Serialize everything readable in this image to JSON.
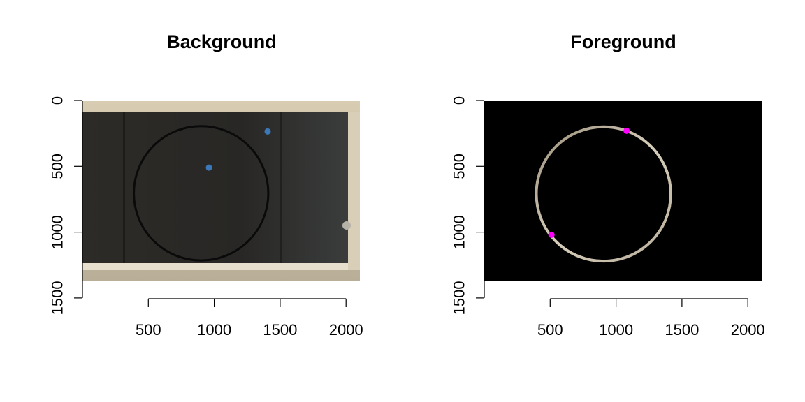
{
  "chart_data": [
    {
      "type": "scatter",
      "title": "Background",
      "xlabel": "",
      "ylabel": "",
      "xlim": [
        0,
        2100
      ],
      "ylim": [
        0,
        1500
      ],
      "y_reversed": true,
      "x_ticks": [
        500,
        1000,
        1500,
        2000
      ],
      "y_ticks": [
        0,
        500,
        1000,
        1500
      ],
      "grid": false,
      "legend": "none",
      "background": "photo of a dark chalkboard in a light wooden frame with a large hand-drawn black circle",
      "image_extent": {
        "x": [
          0,
          2100
        ],
        "y": [
          0,
          1370
        ]
      },
      "circle": {
        "cx": 900,
        "cy": 705,
        "r": 510,
        "color": "#0a0a0a"
      },
      "point_color": "#3c78b8",
      "points": [
        {
          "x": 960,
          "y": 510
        },
        {
          "x": 1405,
          "y": 235
        }
      ]
    },
    {
      "type": "scatter",
      "title": "Foreground",
      "xlabel": "",
      "ylabel": "",
      "xlim": [
        0,
        2100
      ],
      "ylim": [
        0,
        1500
      ],
      "y_reversed": true,
      "x_ticks": [
        500,
        1000,
        1500,
        2000
      ],
      "y_ticks": [
        0,
        500,
        1000,
        1500
      ],
      "grid": false,
      "legend": "none",
      "background": "black image with the extracted light-colored chalk circle",
      "image_extent": {
        "x": [
          0,
          2100
        ],
        "y": [
          0,
          1370
        ]
      },
      "circle": {
        "cx": 905,
        "cy": 710,
        "r": 510,
        "color": "#bdb3a0"
      },
      "point_color": "#ff00ff",
      "points": [
        {
          "x": 1080,
          "y": 230
        },
        {
          "x": 510,
          "y": 1020
        }
      ]
    }
  ]
}
